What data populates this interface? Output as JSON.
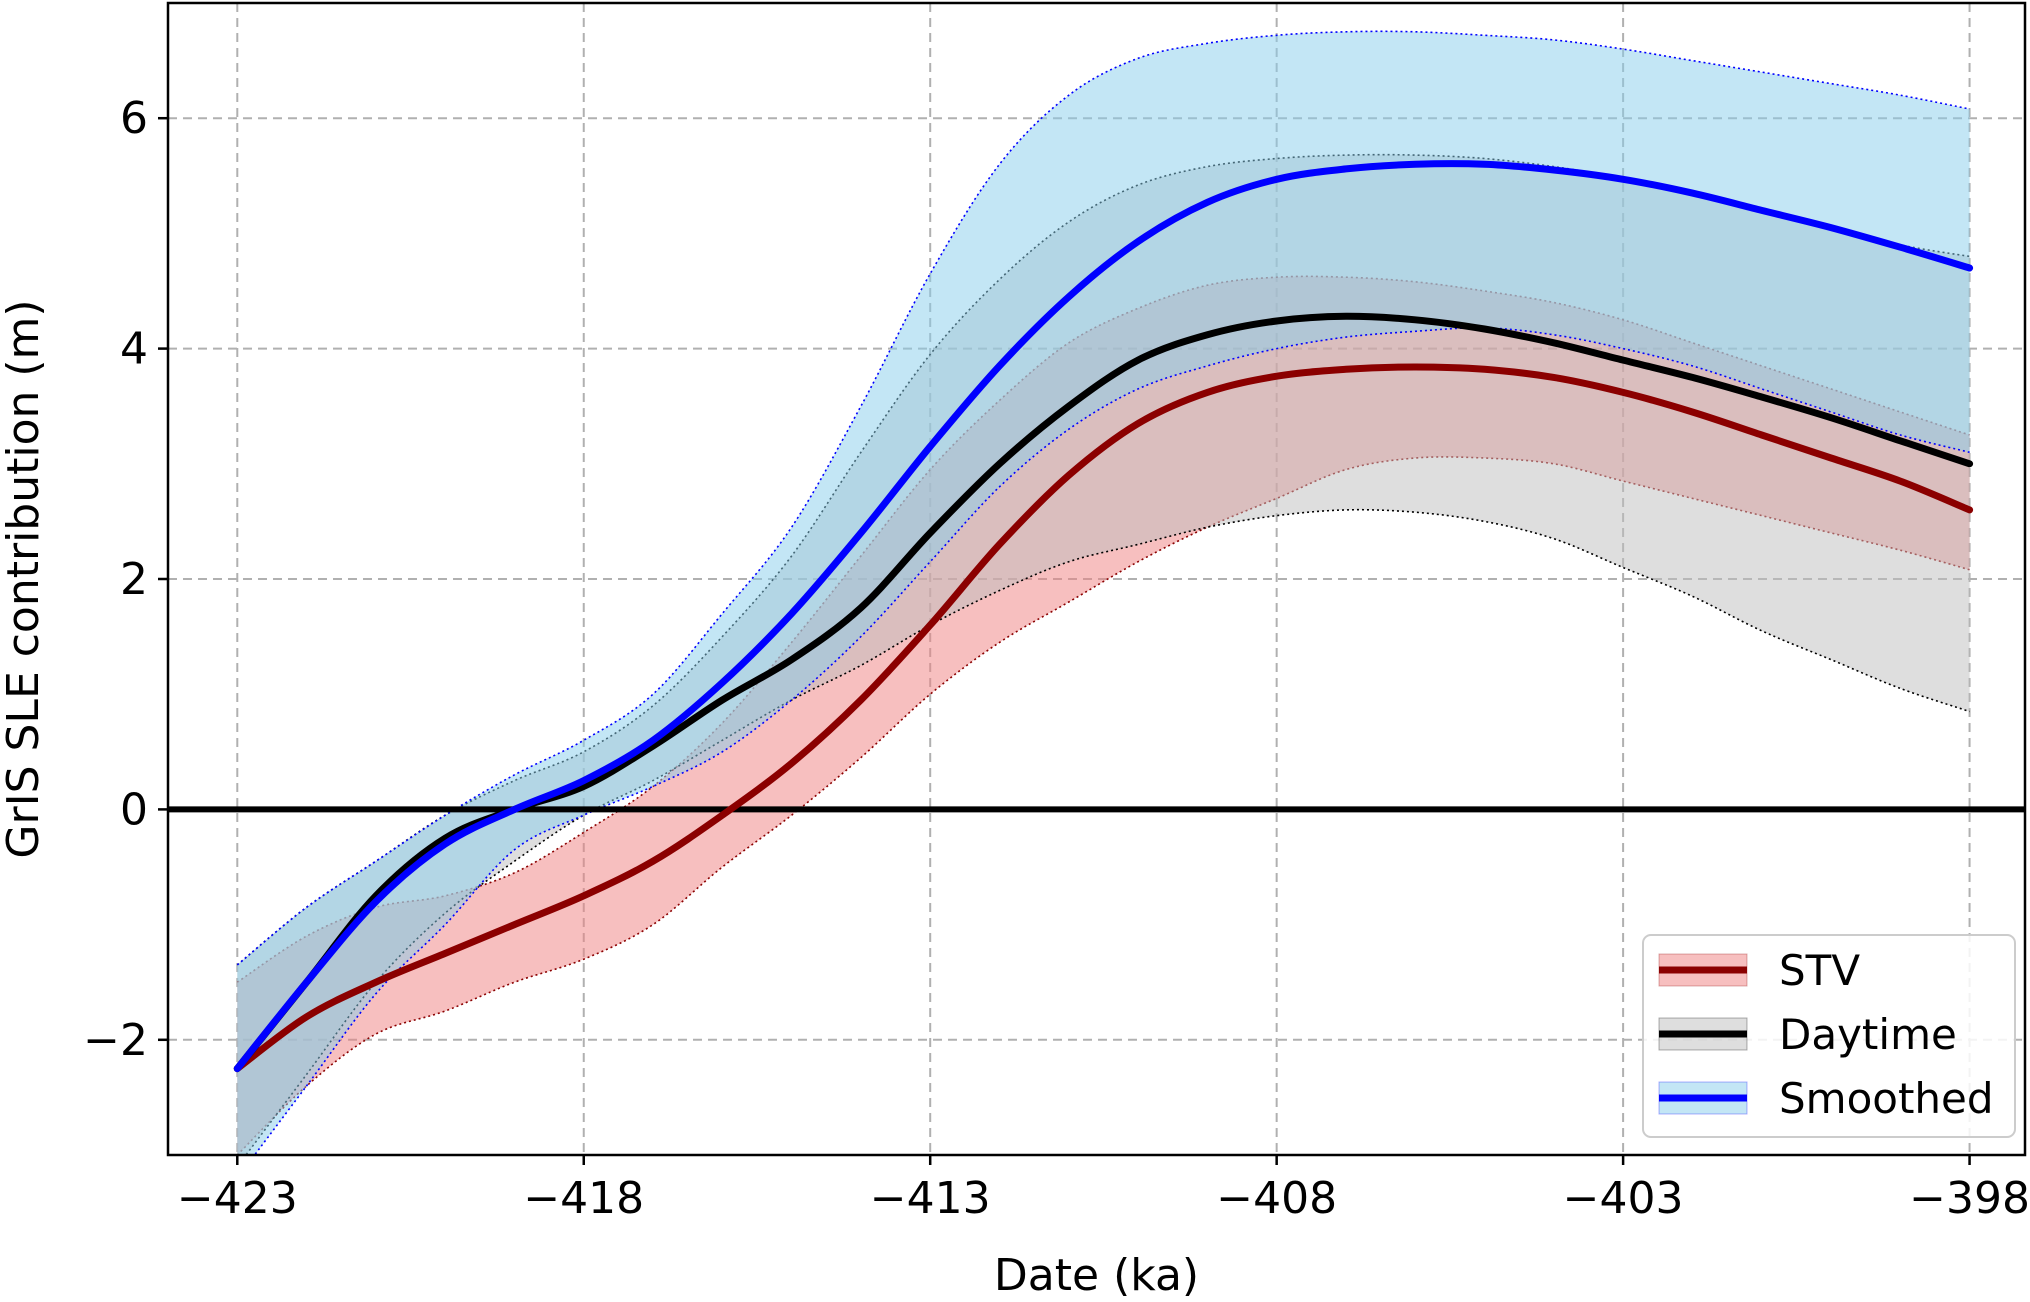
{
  "chart_data": {
    "type": "line",
    "title": "",
    "xlabel": "Date (ka)",
    "ylabel": "GrIS SLE contribution (m)",
    "xlim": [
      -424,
      -397.2
    ],
    "ylim": [
      -3.0,
      7.0
    ],
    "xticks": [
      -423,
      -418,
      -413,
      -408,
      -403,
      -398
    ],
    "yticks": [
      -2,
      0,
      2,
      4,
      6
    ],
    "grid": true,
    "zero_line": true,
    "legend_position": "lower right",
    "x": [
      -423,
      -422,
      -421,
      -420,
      -419,
      -418,
      -417,
      -416,
      -415,
      -414,
      -413,
      -412,
      -411,
      -410,
      -409,
      -408,
      -407,
      -406,
      -405,
      -404,
      -403,
      -402,
      -401,
      -400,
      -399,
      -398
    ],
    "series": [
      {
        "name": "STV",
        "line_color": "#8b0000",
        "band_color": "#f08080",
        "values": [
          -2.25,
          -1.8,
          -1.5,
          -1.25,
          -1.0,
          -0.75,
          -0.45,
          -0.05,
          0.4,
          0.95,
          1.6,
          2.3,
          2.9,
          3.35,
          3.62,
          3.76,
          3.82,
          3.84,
          3.82,
          3.75,
          3.62,
          3.45,
          3.25,
          3.05,
          2.85,
          2.6
        ],
        "lower": [
          -3.0,
          -2.4,
          -1.95,
          -1.75,
          -1.5,
          -1.3,
          -1.0,
          -0.5,
          -0.05,
          0.45,
          1.0,
          1.45,
          1.8,
          2.15,
          2.45,
          2.7,
          2.95,
          3.05,
          3.05,
          3.0,
          2.85,
          2.7,
          2.55,
          2.4,
          2.25,
          2.08
        ],
        "upper": [
          -1.5,
          -1.1,
          -0.85,
          -0.75,
          -0.55,
          -0.2,
          0.2,
          0.75,
          1.45,
          2.2,
          2.95,
          3.55,
          4.05,
          4.35,
          4.55,
          4.62,
          4.62,
          4.58,
          4.5,
          4.4,
          4.25,
          4.05,
          3.85,
          3.65,
          3.45,
          3.25
        ]
      },
      {
        "name": "Daytime",
        "line_color": "#000000",
        "band_color": "#bdbdbd",
        "values": [
          -2.25,
          -1.5,
          -0.75,
          -0.25,
          0.0,
          0.2,
          0.55,
          0.95,
          1.3,
          1.75,
          2.4,
          3.0,
          3.5,
          3.9,
          4.12,
          4.24,
          4.28,
          4.25,
          4.17,
          4.05,
          3.9,
          3.75,
          3.58,
          3.4,
          3.2,
          3.0
        ],
        "lower": [
          -3.1,
          -2.3,
          -1.5,
          -0.9,
          -0.45,
          -0.05,
          0.25,
          0.6,
          0.95,
          1.25,
          1.6,
          1.9,
          2.15,
          2.3,
          2.45,
          2.55,
          2.6,
          2.58,
          2.5,
          2.35,
          2.1,
          1.85,
          1.55,
          1.3,
          1.05,
          0.85
        ],
        "upper": [
          -1.35,
          -0.85,
          -0.45,
          -0.05,
          0.25,
          0.5,
          0.9,
          1.5,
          2.2,
          3.1,
          3.95,
          4.6,
          5.1,
          5.42,
          5.58,
          5.65,
          5.68,
          5.68,
          5.65,
          5.58,
          5.48,
          5.35,
          5.2,
          5.05,
          4.9,
          4.8
        ]
      },
      {
        "name": "Smoothed",
        "line_color": "#0000ff",
        "band_color": "#87ceeb",
        "values": [
          -2.25,
          -1.5,
          -0.8,
          -0.3,
          0.0,
          0.25,
          0.6,
          1.1,
          1.7,
          2.4,
          3.15,
          3.85,
          4.45,
          4.93,
          5.27,
          5.47,
          5.56,
          5.6,
          5.6,
          5.55,
          5.47,
          5.35,
          5.2,
          5.05,
          4.88,
          4.7
        ],
        "lower": [
          -3.2,
          -2.4,
          -1.6,
          -1.0,
          -0.35,
          -0.05,
          0.2,
          0.5,
          0.95,
          1.5,
          2.15,
          2.8,
          3.3,
          3.65,
          3.85,
          4.0,
          4.1,
          4.15,
          4.18,
          4.12,
          4.0,
          3.85,
          3.65,
          3.45,
          3.25,
          3.1
        ],
        "upper": [
          -1.35,
          -0.85,
          -0.45,
          -0.05,
          0.3,
          0.6,
          1.0,
          1.7,
          2.45,
          3.5,
          4.65,
          5.6,
          6.2,
          6.52,
          6.65,
          6.72,
          6.75,
          6.75,
          6.72,
          6.68,
          6.6,
          6.5,
          6.4,
          6.3,
          6.2,
          6.08
        ]
      }
    ]
  }
}
